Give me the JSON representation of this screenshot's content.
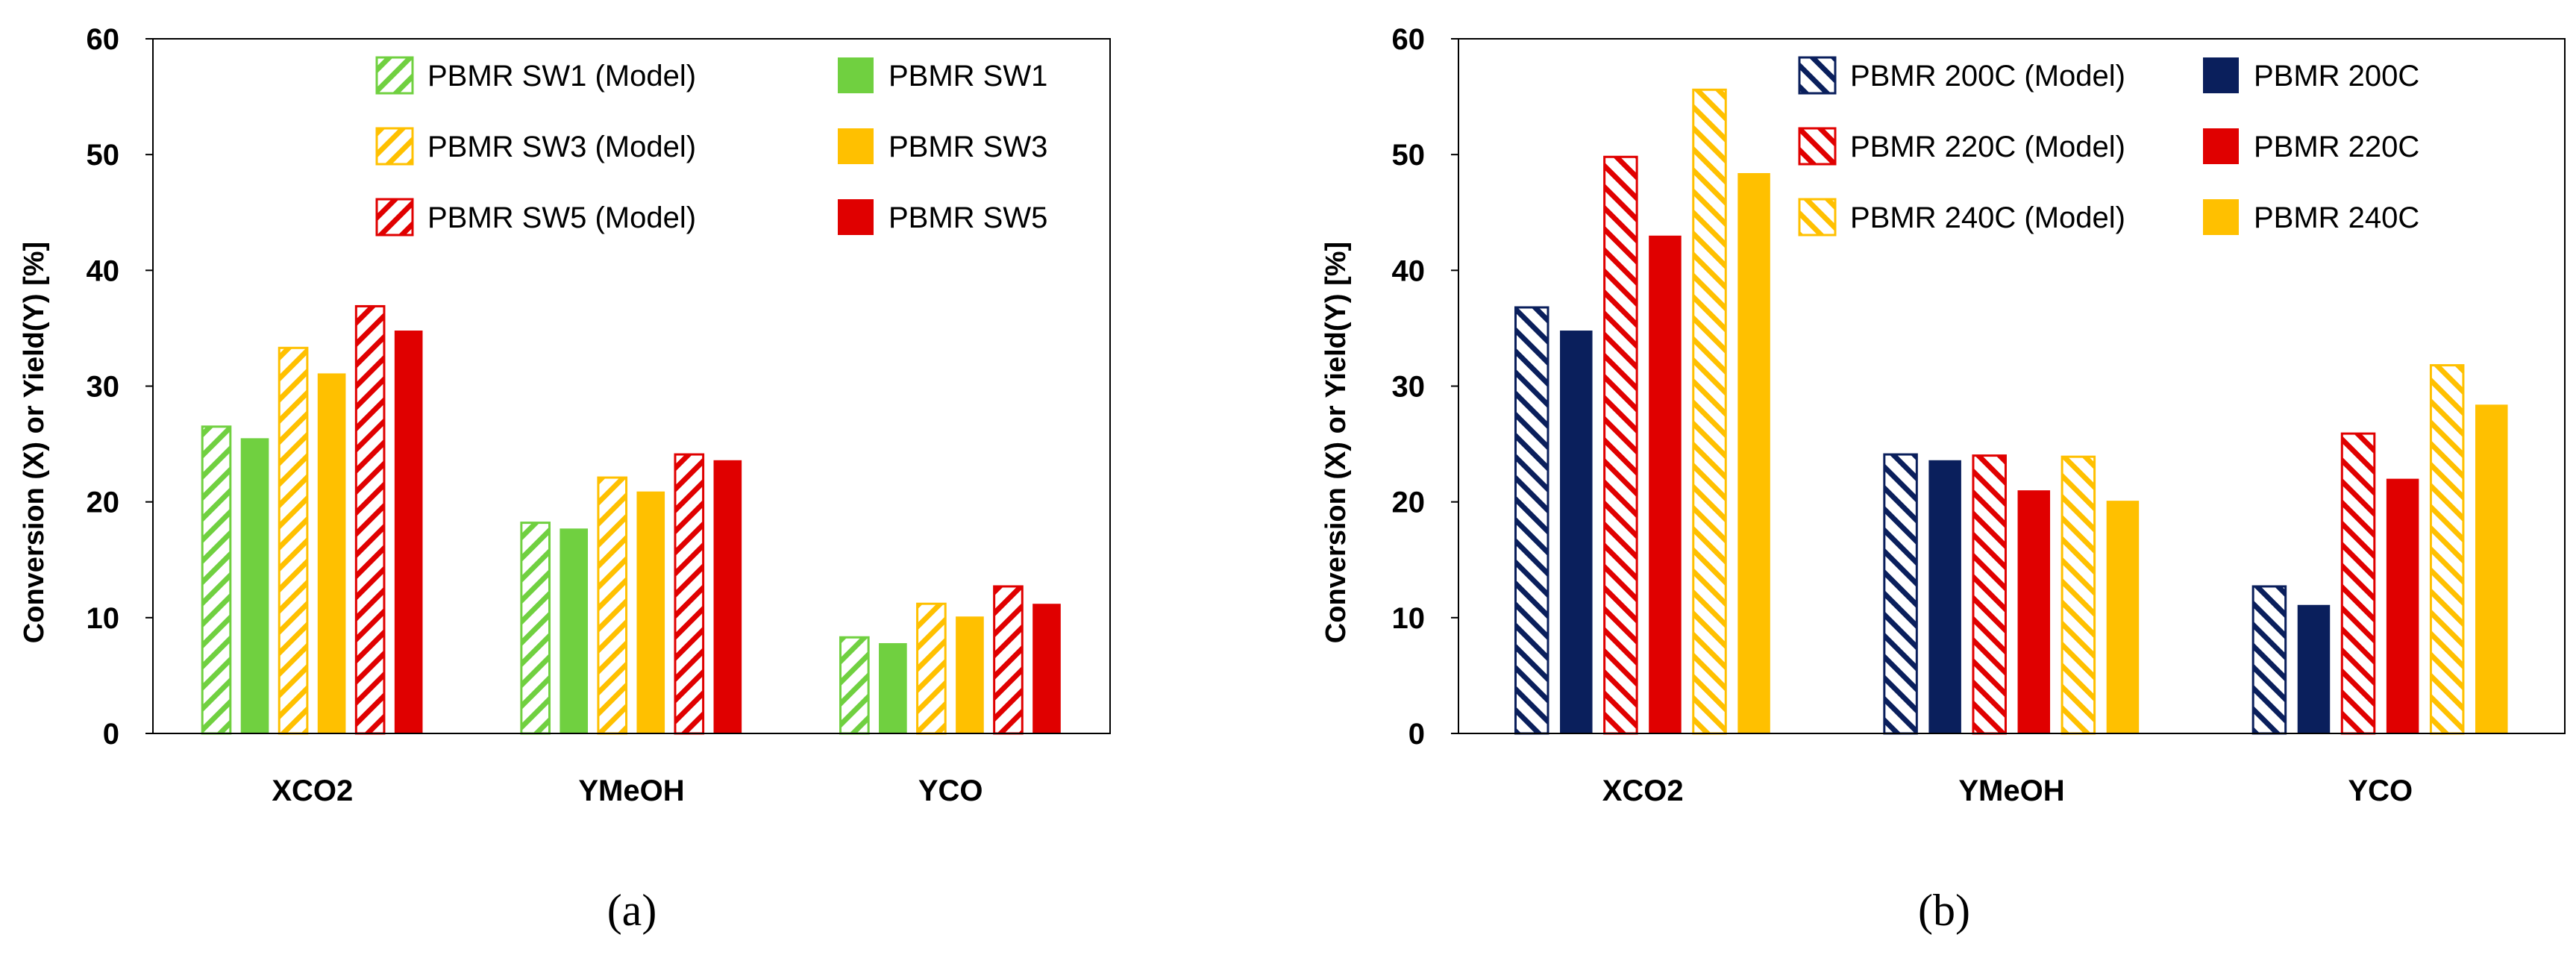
{
  "panels": [
    {
      "label": "(a)",
      "chart_data": {
        "type": "bar",
        "title": "",
        "xlabel": "",
        "ylabel": "Conversion (X) or Yield(Y) [%]",
        "ylim": [
          0,
          60
        ],
        "yticks": [
          0,
          10,
          20,
          30,
          40,
          50,
          60
        ],
        "categories": [
          "XCO2",
          "YMeOH",
          "YCO"
        ],
        "grid": false,
        "legend": "top-inside, 2 columns",
        "series": [
          {
            "name": "PBMR SW1 (Model)",
            "values": [
              26.5,
              18.2,
              8.3
            ],
            "color": "#70D040",
            "pattern": "hatch"
          },
          {
            "name": "PBMR SW1",
            "values": [
              25.5,
              17.7,
              7.8
            ],
            "color": "#70D040",
            "pattern": "solid"
          },
          {
            "name": "PBMR SW3 (Model)",
            "values": [
              33.3,
              22.1,
              11.2
            ],
            "color": "#FFC000",
            "pattern": "hatch"
          },
          {
            "name": "PBMR SW3",
            "values": [
              31.1,
              20.9,
              10.1
            ],
            "color": "#FFC000",
            "pattern": "solid"
          },
          {
            "name": "PBMR SW5 (Model)",
            "values": [
              36.9,
              24.1,
              12.7
            ],
            "color": "#E00000",
            "pattern": "hatch"
          },
          {
            "name": "PBMR SW5",
            "values": [
              34.8,
              23.6,
              11.2
            ],
            "color": "#E00000",
            "pattern": "solid"
          }
        ]
      }
    },
    {
      "label": "(b)",
      "chart_data": {
        "type": "bar",
        "title": "",
        "xlabel": "",
        "ylabel": "Conversion (X) or Yield(Y) [%]",
        "ylim": [
          0,
          60
        ],
        "yticks": [
          0,
          10,
          20,
          30,
          40,
          50,
          60
        ],
        "categories": [
          "XCO2",
          "YMeOH",
          "YCO"
        ],
        "grid": false,
        "legend": "top-inside, 2 columns",
        "series": [
          {
            "name": "PBMR 200C (Model)",
            "values": [
              36.8,
              24.1,
              12.7
            ],
            "color": "#0A1F5C",
            "pattern": "hatch"
          },
          {
            "name": "PBMR 200C",
            "values": [
              34.8,
              23.6,
              11.1
            ],
            "color": "#0A1F5C",
            "pattern": "solid"
          },
          {
            "name": "PBMR 220C (Model)",
            "values": [
              49.8,
              24.0,
              25.9
            ],
            "color": "#E00000",
            "pattern": "hatch"
          },
          {
            "name": "PBMR 220C",
            "values": [
              43.0,
              21.0,
              22.0
            ],
            "color": "#E00000",
            "pattern": "solid"
          },
          {
            "name": "PBMR 240C (Model)",
            "values": [
              55.6,
              23.9,
              31.8
            ],
            "color": "#FFC000",
            "pattern": "hatch"
          },
          {
            "name": "PBMR 240C",
            "values": [
              48.4,
              20.1,
              28.4
            ],
            "color": "#FFC000",
            "pattern": "solid"
          }
        ]
      }
    }
  ]
}
